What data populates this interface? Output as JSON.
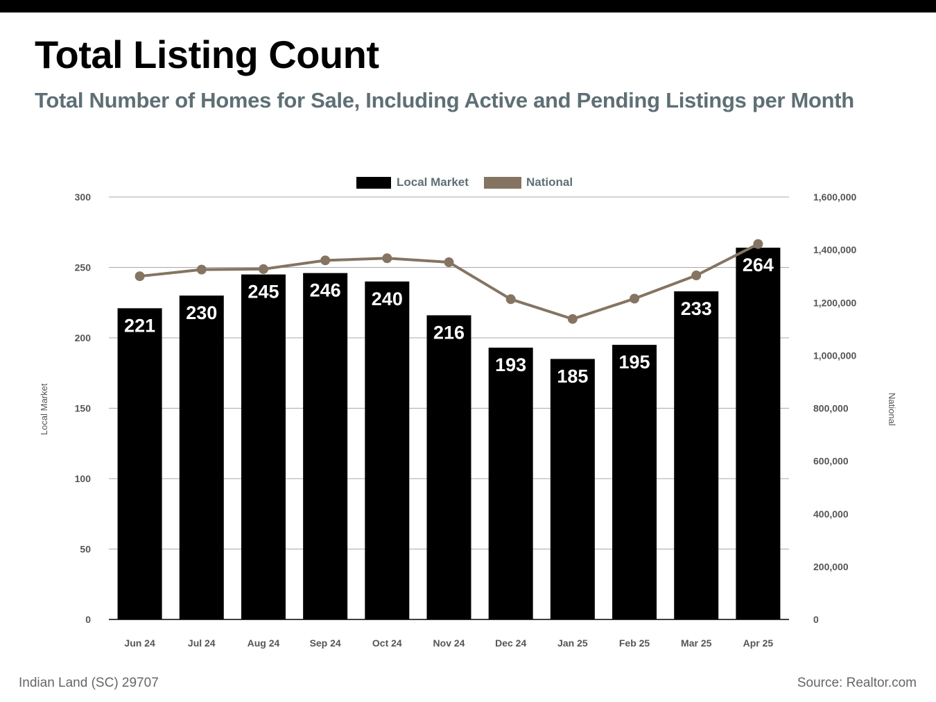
{
  "title": "Total Listing Count",
  "subtitle": "Total Number of Homes for Sale, Including Active and Pending Listings per Month",
  "footer": {
    "location": "Indian Land (SC) 29707",
    "source": "Source: Realtor.com"
  },
  "colors": {
    "bar": "#000000",
    "line": "#857462",
    "label_text": "#ffffff",
    "subtitle": "#5e6f75",
    "legend_text": "#5e6f75"
  },
  "chart_data": {
    "type": "bar",
    "categories": [
      "Jun 24",
      "Jul 24",
      "Aug 24",
      "Sep 24",
      "Oct 24",
      "Nov 24",
      "Dec 24",
      "Jan 25",
      "Feb 25",
      "Mar 25",
      "Apr 25"
    ],
    "series": [
      {
        "name": "Local Market",
        "type": "bar",
        "axis": "left",
        "values": [
          221,
          230,
          245,
          246,
          240,
          216,
          193,
          185,
          195,
          233,
          264
        ]
      },
      {
        "name": "National",
        "type": "line",
        "axis": "right",
        "values": [
          1300000,
          1325000,
          1327000,
          1360000,
          1368000,
          1353000,
          1213000,
          1138000,
          1215000,
          1303000,
          1422000
        ]
      }
    ],
    "ylabel": "Local Market",
    "y2label": "National",
    "ylim": [
      0,
      300
    ],
    "y2lim": [
      0,
      1600000
    ],
    "yticks": [
      "0",
      "50",
      "100",
      "150",
      "200",
      "250",
      "300"
    ],
    "y2ticks": [
      "0",
      "200,000",
      "400,000",
      "600,000",
      "800,000",
      "1,000,000",
      "1,200,000",
      "1,400,000",
      "1,600,000"
    ],
    "grid": true,
    "legend_position": "top-center",
    "data_labels": true
  }
}
